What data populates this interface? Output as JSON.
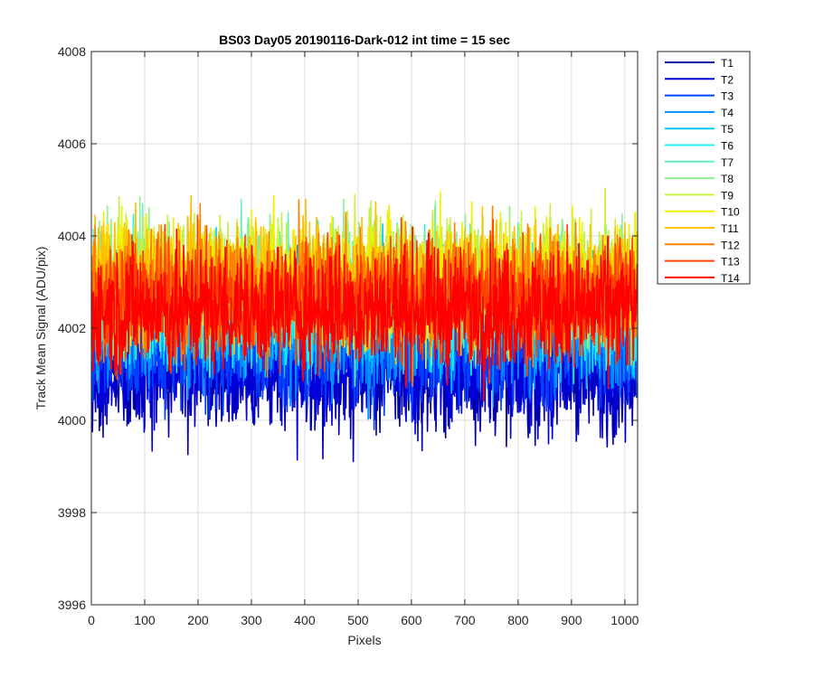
{
  "chart_data": {
    "type": "line",
    "title": "BS03 Day05 20190116-Dark-012 int time = 15 sec",
    "xlabel": "Pixels",
    "ylabel": "Track Mean Signal (ADU/pix)",
    "xlim": [
      0,
      1024
    ],
    "ylim": [
      3996,
      4008
    ],
    "xticks": [
      "0",
      "100",
      "200",
      "300",
      "400",
      "500",
      "600",
      "700",
      "800",
      "900",
      "1000"
    ],
    "yticks": [
      "3996",
      "3998",
      "4000",
      "4002",
      "4004",
      "4006",
      "4008"
    ],
    "grid": true,
    "legend_position": "outside-top-right",
    "n_points": 1024,
    "series": [
      {
        "name": "T1",
        "color": "#0000aa",
        "mean": 4001.0,
        "spread": 1.2
      },
      {
        "name": "T2",
        "color": "#0000dd",
        "mean": 4001.2,
        "spread": 1.2
      },
      {
        "name": "T3",
        "color": "#0040ff",
        "mean": 4001.6,
        "spread": 1.2
      },
      {
        "name": "T4",
        "color": "#0090ff",
        "mean": 4002.0,
        "spread": 1.2
      },
      {
        "name": "T5",
        "color": "#00c8ff",
        "mean": 4002.4,
        "spread": 1.2
      },
      {
        "name": "T6",
        "color": "#20f0f0",
        "mean": 4002.6,
        "spread": 1.2
      },
      {
        "name": "T7",
        "color": "#60f0c0",
        "mean": 4002.8,
        "spread": 1.2
      },
      {
        "name": "T8",
        "color": "#90f090",
        "mean": 4003.0,
        "spread": 1.2
      },
      {
        "name": "T9",
        "color": "#c8f040",
        "mean": 4003.1,
        "spread": 1.2
      },
      {
        "name": "T10",
        "color": "#f0f000",
        "mean": 4003.1,
        "spread": 1.2
      },
      {
        "name": "T11",
        "color": "#ffc000",
        "mean": 4003.0,
        "spread": 1.2
      },
      {
        "name": "T12",
        "color": "#ff8000",
        "mean": 4002.8,
        "spread": 1.2
      },
      {
        "name": "T13",
        "color": "#ff4000",
        "mean": 4002.6,
        "spread": 1.2
      },
      {
        "name": "T14",
        "color": "#ff0000",
        "mean": 4002.4,
        "spread": 1.2
      }
    ]
  }
}
